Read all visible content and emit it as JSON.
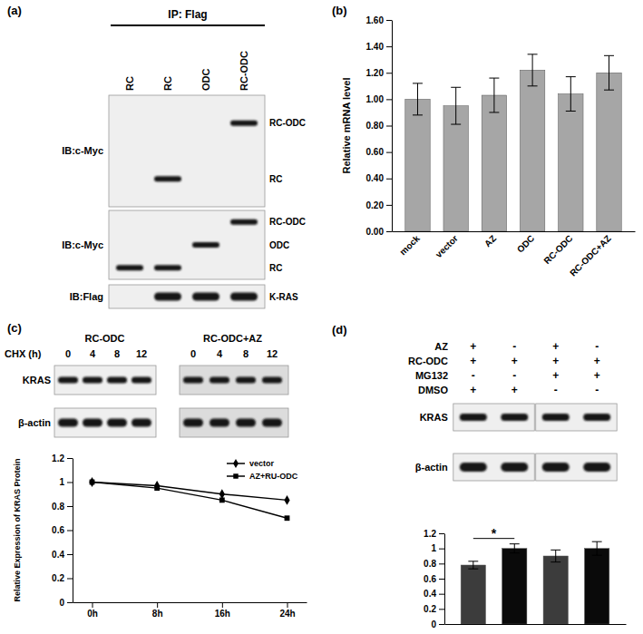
{
  "chart_data": [
    {
      "type": "bar",
      "title": "(b)",
      "y_label": "Relative mRNA level",
      "categories": [
        "mock",
        "vector",
        "AZ",
        "ODC",
        "RC-ODC",
        "RC-ODC+AZ"
      ],
      "values": [
        1.0,
        0.95,
        1.03,
        1.22,
        1.04,
        1.2
      ],
      "errors": [
        0.12,
        0.14,
        0.13,
        0.12,
        0.13,
        0.13
      ],
      "color": "#a6a6a6",
      "ylim": [
        0,
        1.6
      ],
      "yticks": [
        {
          "value": 0,
          "label": "0.00"
        },
        {
          "value": 0.2,
          "label": "0.20"
        },
        {
          "value": 0.4,
          "label": "0.40"
        },
        {
          "value": 0.6,
          "label": "0.60"
        },
        {
          "value": 0.8,
          "label": "0.80"
        },
        {
          "value": 1,
          "label": "1.00"
        },
        {
          "value": 1.2,
          "label": "1.20"
        },
        {
          "value": 1.4,
          "label": "1.40"
        },
        {
          "value": 1.6,
          "label": "1.60"
        }
      ]
    },
    {
      "type": "line",
      "y_label": "Relative Expression of KRAS Protein",
      "categories": [
        "0h",
        "8h",
        "16h",
        "24h"
      ],
      "series": [
        {
          "name": "vector",
          "color": "#000000",
          "marker": "diamond",
          "values": [
            1,
            0.97,
            0.9,
            0.85
          ]
        },
        {
          "name": "AZ+RU-ODC",
          "color": "#000000",
          "marker": "square",
          "values": [
            1,
            0.95,
            0.85,
            0.7
          ]
        }
      ],
      "ylim": [
        0,
        1.2
      ],
      "yticks": [
        0,
        0.2,
        0.4,
        0.6,
        0.8,
        1,
        1.2
      ],
      "legend": "upper right"
    },
    {
      "type": "bar",
      "categories": [
        null,
        null,
        null,
        null
      ],
      "values": [
        0.78,
        1,
        0.9,
        1
      ],
      "errors": [
        0.05,
        0.06,
        0.08,
        0.09
      ],
      "colors": [
        "#3c3c3c",
        "#0a0a0a",
        "#3c3c3c",
        "#0a0a0a"
      ],
      "ylim": [
        0,
        1.2
      ],
      "yticks": [
        0,
        0.2,
        0.4,
        0.6,
        0.8,
        1,
        1.2
      ],
      "annotations": [
        {
          "text": "*",
          "categories": [
            0,
            1
          ]
        }
      ]
    }
  ],
  "figure": {
    "panels": [
      {
        "label": "(a)",
        "header": "IP: Flag",
        "lanes": [
          "RC",
          "RC",
          "ODC",
          "RC-ODC"
        ],
        "blots": [
          {
            "probe": "IB:c-Myc",
            "bands": [
              {
                "name": "RC-ODC",
                "lanes": [
                  3
                ]
              },
              {
                "name": "RC",
                "lanes": [
                  1
                ]
              }
            ]
          },
          {
            "probe": "IB:c-Myc",
            "bands": [
              {
                "name": "RC-ODC",
                "lanes": [
                  3
                ]
              },
              {
                "name": "ODC",
                "lanes": [
                  2
                ]
              },
              {
                "name": "RC",
                "lanes": [
                  0,
                  1
                ]
              }
            ]
          },
          {
            "probe": "IB:Flag",
            "bands": [
              {
                "name": "K-RAS",
                "lanes": [
                  1,
                  2,
                  3
                ]
              }
            ]
          }
        ]
      },
      {
        "label": "(c)",
        "x_label": "CHX (h)",
        "groups": [
          {
            "name": "RC-ODC",
            "lanes": [
              0,
              4,
              8,
              12
            ]
          },
          {
            "name": "RC-ODC+AZ",
            "lanes": [
              0,
              4,
              8,
              12
            ]
          }
        ],
        "rows": [
          "KRAS",
          "β-actin"
        ]
      },
      {
        "label": "(d)",
        "conditions": [
          {
            "name": "AZ",
            "signs": [
              "+",
              "-",
              "+",
              "-"
            ]
          },
          {
            "name": "RC-ODC",
            "signs": [
              "+",
              "+",
              "+",
              "+"
            ]
          },
          {
            "name": "MG132",
            "signs": [
              "-",
              "-",
              "+",
              "+"
            ]
          },
          {
            "name": "DMSO",
            "signs": [
              "+",
              "+",
              "-",
              "-"
            ]
          }
        ],
        "rows": [
          "KRAS",
          "β-actin"
        ]
      }
    ]
  }
}
